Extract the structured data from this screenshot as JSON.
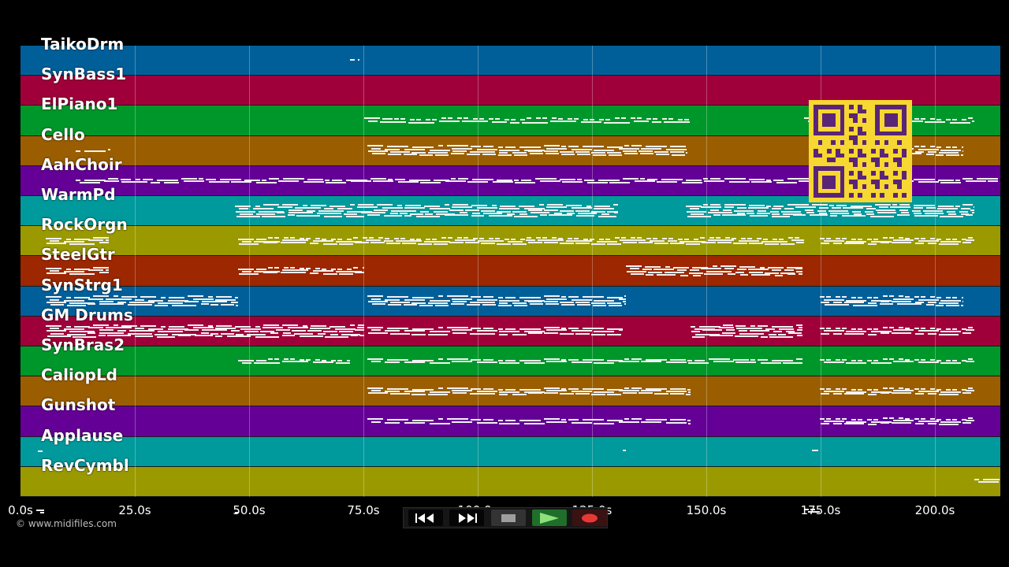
{
  "app": {
    "copyright": "© www.midifiles.com"
  },
  "tracks": [
    {
      "name": "TaikoDrm",
      "color": "#005f99"
    },
    {
      "name": "SynBass1",
      "color": "#a0003a"
    },
    {
      "name": "ElPiano1",
      "color": "#00972a"
    },
    {
      "name": "Cello",
      "color": "#9a5e00"
    },
    {
      "name": "AahChoir",
      "color": "#640096"
    },
    {
      "name": "WarmPd",
      "color": "#00999c"
    },
    {
      "name": "RockOrgn",
      "color": "#9a9a00"
    },
    {
      "name": "SteelGtr",
      "color": "#9c2700"
    },
    {
      "name": "SynStrg1",
      "color": "#005f99"
    },
    {
      "name": "GM Drums",
      "color": "#a0003a"
    },
    {
      "name": "SynBras2",
      "color": "#00972a"
    },
    {
      "name": "CaliopLd",
      "color": "#9a5e00"
    },
    {
      "name": "Gunshot",
      "color": "#640096"
    },
    {
      "name": "Applause",
      "color": "#00999c"
    },
    {
      "name": "RevCymbl",
      "color": "#9a9a00"
    }
  ],
  "timeline": {
    "ticks": [
      "0.0s",
      "25.0s",
      "50.0s",
      "75.0s",
      "100.0s",
      "125.0s",
      "150.0s",
      "175.0s",
      "200.0s"
    ]
  },
  "transport": {
    "rewind_icon": "rewind-icon",
    "forward_icon": "fast-forward-icon",
    "stop_icon": "stop-icon",
    "play_icon": "play-icon",
    "record_icon": "record-icon",
    "play_color": "#2e7d32",
    "record_color": "#e53935"
  },
  "overlay": {
    "icon": "qr-code-icon",
    "color": "#f7d731"
  }
}
